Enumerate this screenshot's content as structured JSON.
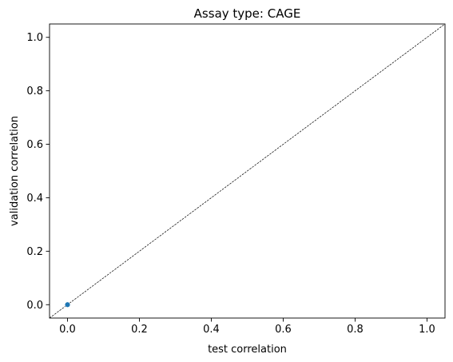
{
  "chart_data": {
    "type": "scatter",
    "title": "Assay type: CAGE",
    "xlabel": "test correlation",
    "ylabel": "validation correlation",
    "xlim": [
      -0.05,
      1.05
    ],
    "ylim": [
      -0.05,
      1.05
    ],
    "x_ticks": [
      0.0,
      0.2,
      0.4,
      0.6,
      0.8,
      1.0
    ],
    "y_ticks": [
      0.0,
      0.2,
      0.4,
      0.6,
      0.8,
      1.0
    ],
    "x_tick_labels": [
      "0.0",
      "0.2",
      "0.4",
      "0.6",
      "0.8",
      "1.0"
    ],
    "y_tick_labels": [
      "0.0",
      "0.2",
      "0.4",
      "0.6",
      "0.8",
      "1.0"
    ],
    "series": [
      {
        "points": [
          {
            "x": 0.0,
            "y": 0.0
          }
        ]
      }
    ],
    "reference_line": {
      "style": "dashed",
      "from": [
        -0.05,
        -0.05
      ],
      "to": [
        1.05,
        1.05
      ]
    },
    "grid": false,
    "colors": {
      "point": "#1f77b4",
      "reference_line": "#000000",
      "axes": "#000000"
    }
  }
}
